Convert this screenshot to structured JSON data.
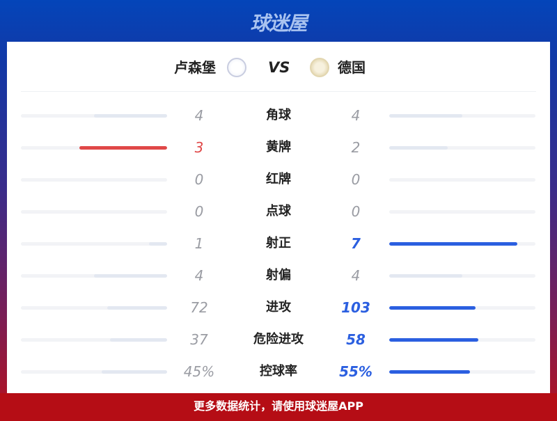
{
  "brand": {
    "logo": "球迷屋"
  },
  "match": {
    "home": "卢森堡",
    "vs": "VS",
    "away": "德国",
    "home_badge": "luxembourg-flf-crest",
    "away_badge": "germany-dfb-crest"
  },
  "colors": {
    "home_lead": "#e04848",
    "away_lead": "#2b5fe0",
    "neutral_bar": "#e3e8f1",
    "track": "#f2f3f6"
  },
  "stats": [
    {
      "label": "角球",
      "home": "4",
      "away": "4",
      "home_val": 4,
      "away_val": 4
    },
    {
      "label": "黄牌",
      "home": "3",
      "away": "2",
      "home_val": 3,
      "away_val": 2
    },
    {
      "label": "红牌",
      "home": "0",
      "away": "0",
      "home_val": 0,
      "away_val": 0
    },
    {
      "label": "点球",
      "home": "0",
      "away": "0",
      "home_val": 0,
      "away_val": 0
    },
    {
      "label": "射正",
      "home": "1",
      "away": "7",
      "home_val": 1,
      "away_val": 7
    },
    {
      "label": "射偏",
      "home": "4",
      "away": "4",
      "home_val": 4,
      "away_val": 4
    },
    {
      "label": "进攻",
      "home": "72",
      "away": "103",
      "home_val": 72,
      "away_val": 103
    },
    {
      "label": "危险进攻",
      "home": "37",
      "away": "58",
      "home_val": 37,
      "away_val": 58
    },
    {
      "label": "控球率",
      "home": "45%",
      "away": "55%",
      "home_val": 45,
      "away_val": 55
    }
  ],
  "footer": {
    "text": "更多数据统计，请使用球迷屋APP"
  }
}
